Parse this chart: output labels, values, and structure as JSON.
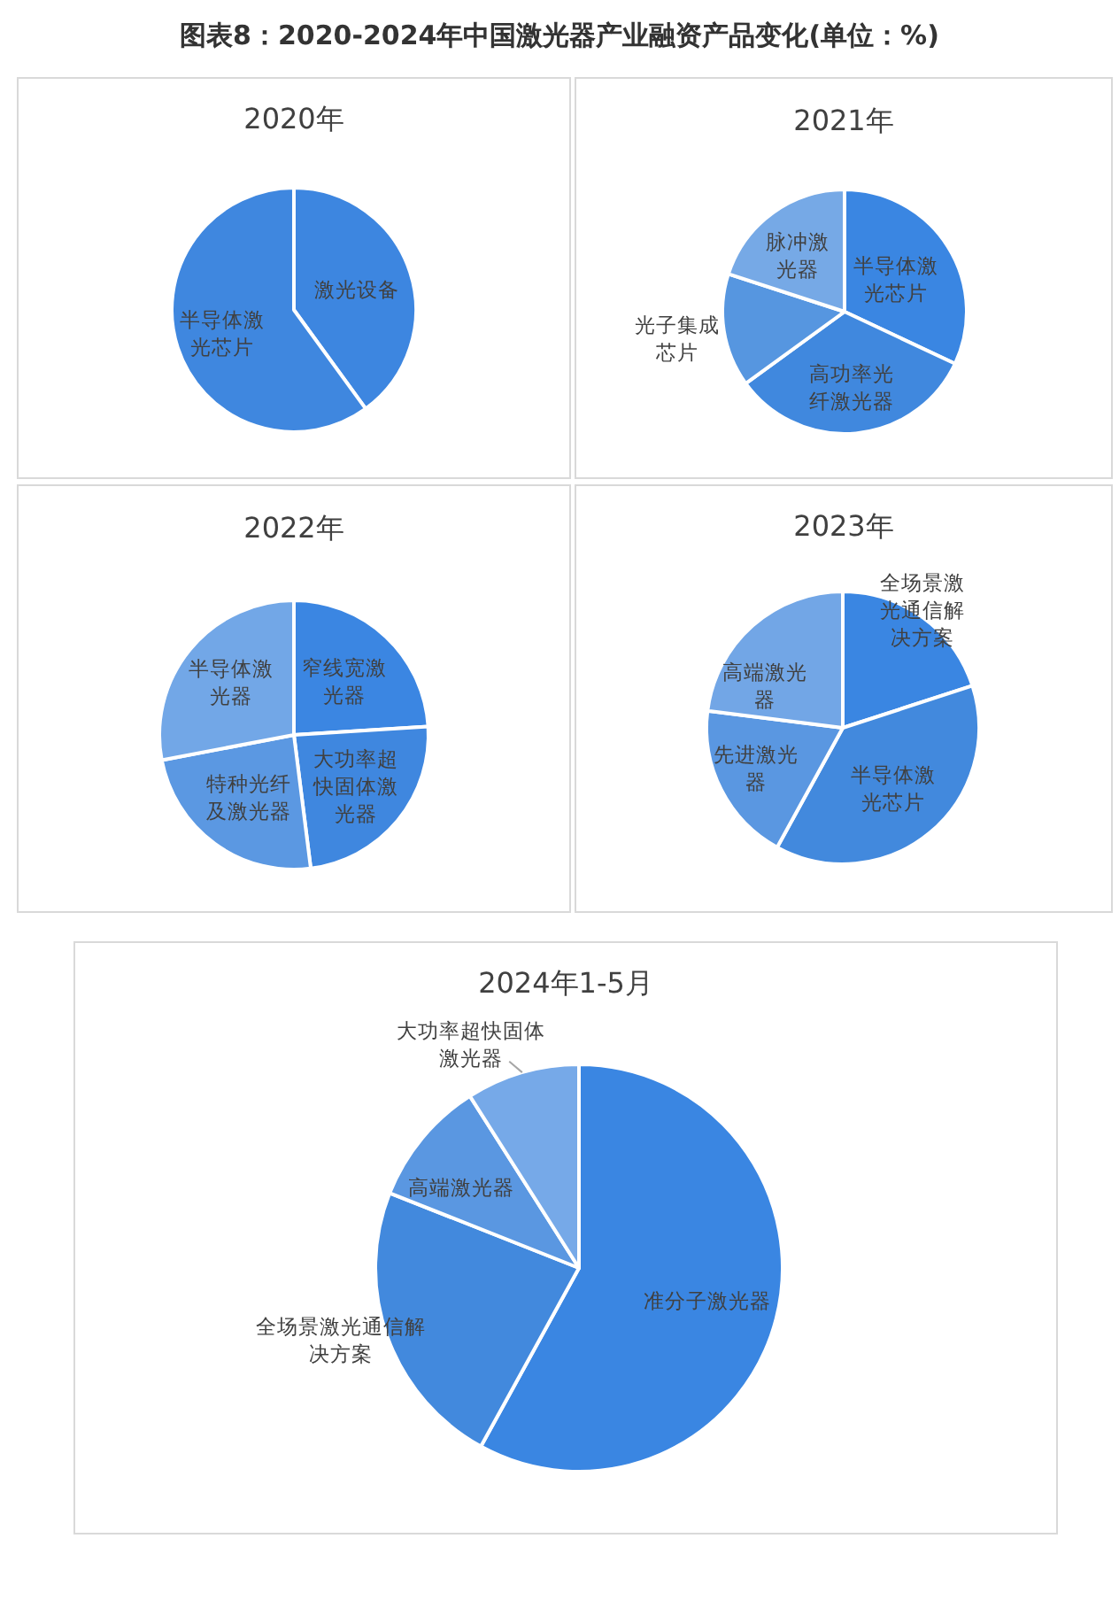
{
  "chart_data": [
    {
      "type": "pie",
      "title": "2020年",
      "annotations": [
        "图表8：2020-2024年中国激光器产业融资产品变化(单位：%)"
      ],
      "categories": [
        "激光设备",
        "半导体激光芯片"
      ],
      "values": [
        40,
        60
      ],
      "colors": [
        "#3d86e0",
        "#3f87df"
      ]
    },
    {
      "type": "pie",
      "title": "2021年",
      "categories": [
        "半导体激光芯片",
        "高功率光纤激光器",
        "光子集成芯片",
        "脉冲激光器"
      ],
      "values": [
        32,
        33,
        15,
        20
      ],
      "colors": [
        "#3a86e2",
        "#4088de",
        "#5696e0",
        "#76a9e6"
      ]
    },
    {
      "type": "pie",
      "title": "2022年",
      "categories": [
        "窄线宽激光器",
        "大功率超快固体激光器",
        "特种光纤及激光器",
        "半导体激光器"
      ],
      "values": [
        24,
        24,
        24,
        28
      ],
      "colors": [
        "#3b86e2",
        "#3f87df",
        "#5b98e2",
        "#72a7e7"
      ]
    },
    {
      "type": "pie",
      "title": "2023年",
      "categories": [
        "全场景激光通信解决方案",
        "半导体激光芯片",
        "先进激光器",
        "高端激光器"
      ],
      "values": [
        20,
        38,
        19,
        23
      ],
      "colors": [
        "#3a86e2",
        "#4289dd",
        "#5a97e1",
        "#72a6e6"
      ]
    },
    {
      "type": "pie",
      "title": "2024年1-5月",
      "categories": [
        "准分子激光器",
        "全场景激光通信解决方案",
        "高端激光器",
        "大功率超快固体激光器"
      ],
      "values": [
        58,
        23,
        10,
        9
      ],
      "colors": [
        "#3a86e2",
        "#4289dd",
        "#5a97e1",
        "#76a9e8"
      ]
    }
  ]
}
